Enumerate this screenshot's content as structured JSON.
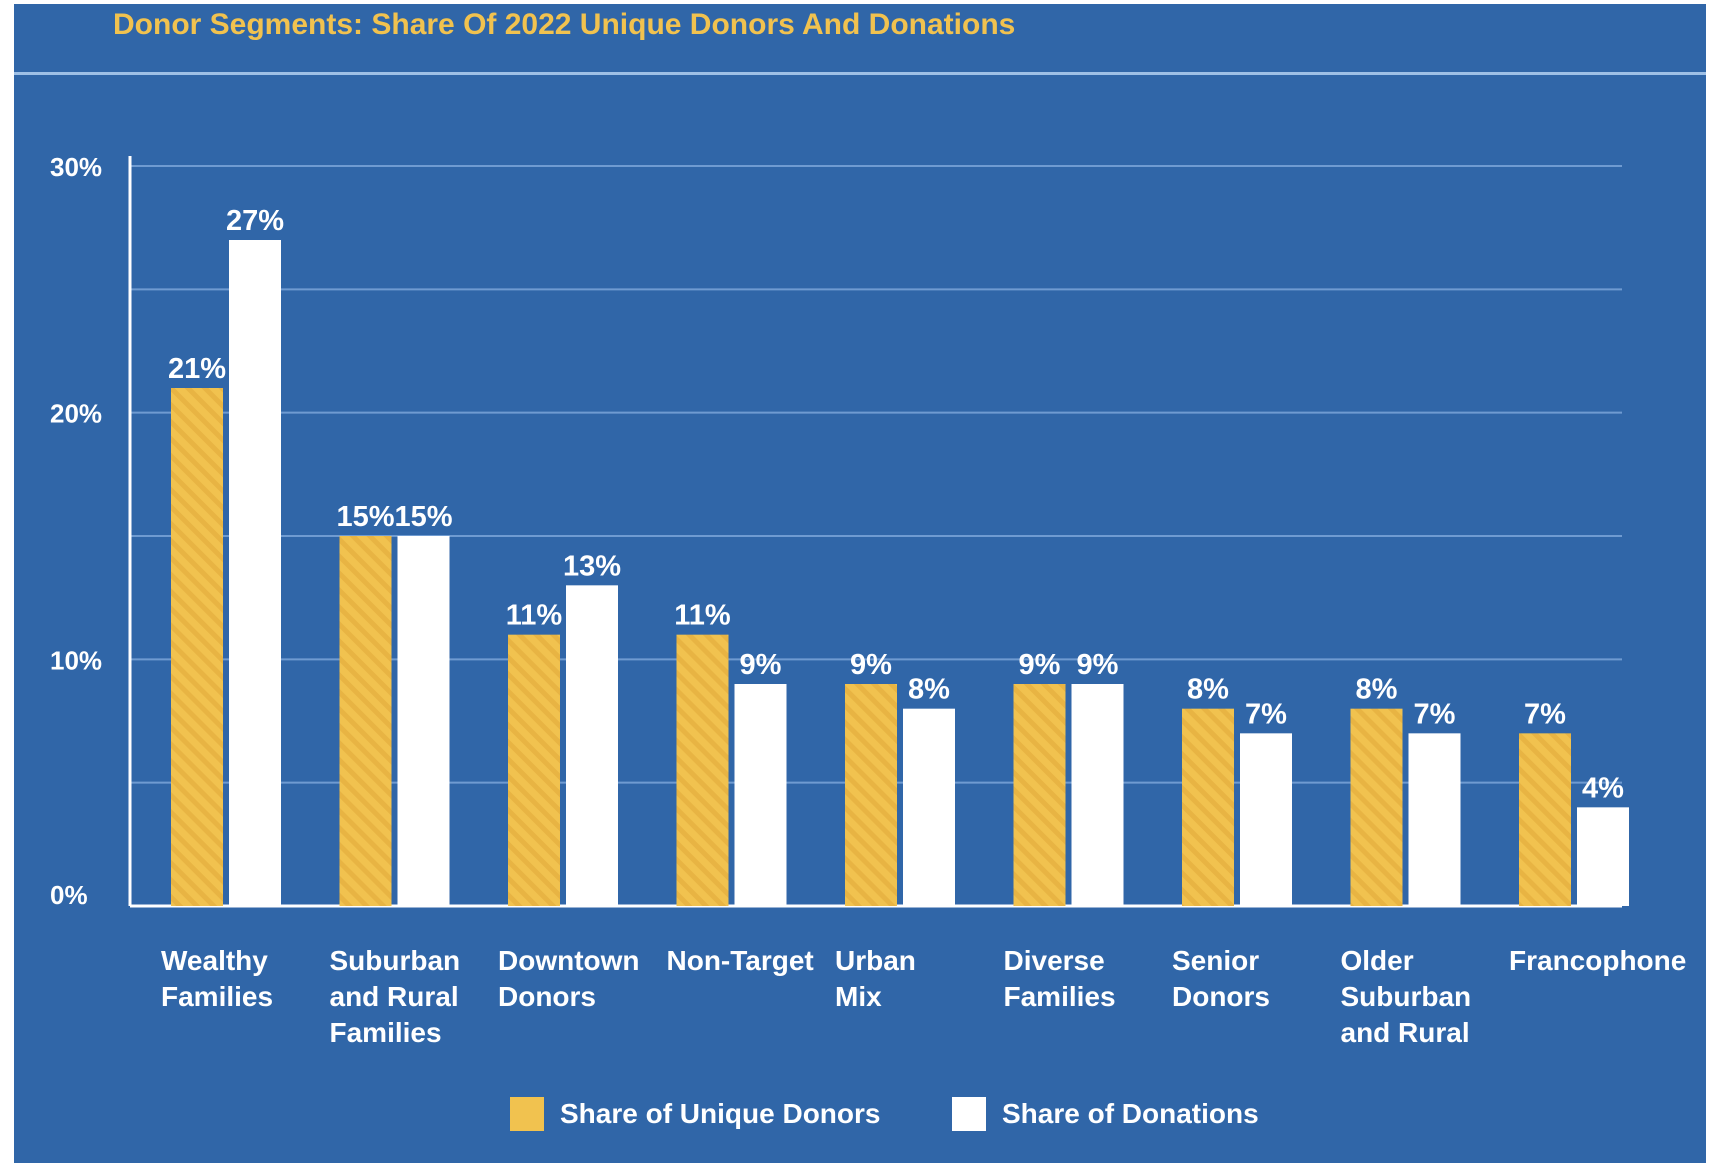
{
  "chart_data": {
    "type": "bar",
    "title": "Donor Segments: Share Of 2022 Unique Donors And Donations",
    "categories": [
      [
        "Wealthy",
        "Families"
      ],
      [
        "Suburban",
        "and Rural",
        "Families"
      ],
      [
        "Downtown",
        "Donors"
      ],
      [
        "Non-Target"
      ],
      [
        "Urban",
        "Mix"
      ],
      [
        "Diverse",
        "Families"
      ],
      [
        "Senior",
        "Donors"
      ],
      [
        "Older",
        "Suburban",
        "and Rural"
      ],
      [
        "Francophone"
      ]
    ],
    "series": [
      {
        "name": "Share of Unique Donors",
        "values": [
          21,
          15,
          11,
          11,
          9,
          9,
          8,
          8,
          7
        ],
        "value_labels": [
          "21%",
          "15%",
          "11%",
          "11%",
          "9%",
          "9%",
          "8%",
          "8%",
          "7%"
        ],
        "color": "#f1c24f"
      },
      {
        "name": "Share of Donations",
        "values": [
          27,
          15,
          13,
          9,
          8,
          9,
          7,
          7,
          4
        ],
        "value_labels": [
          "27%",
          "15%",
          "13%",
          "9%",
          "8%",
          "9%",
          "7%",
          "7%",
          "4%"
        ],
        "color": "#ffffff"
      }
    ],
    "y_ticks": [
      0,
      10,
      20,
      30
    ],
    "y_tick_labels": [
      "0%",
      "10%",
      "20%",
      "30%"
    ],
    "ylim": [
      0,
      30
    ],
    "grid": true,
    "legend_position": "bottom-center",
    "xlabel": "",
    "ylabel": ""
  },
  "colors": {
    "background": "#3066a8",
    "title": "#f1c24f",
    "gridline": "#6f9bd1",
    "text": "#ffffff"
  }
}
